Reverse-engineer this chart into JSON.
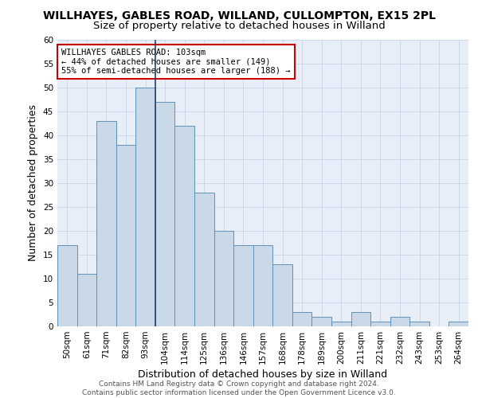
{
  "title1": "WILLHAYES, GABLES ROAD, WILLAND, CULLOMPTON, EX15 2PL",
  "title2": "Size of property relative to detached houses in Willand",
  "xlabel": "Distribution of detached houses by size in Willand",
  "ylabel": "Number of detached properties",
  "categories": [
    "50sqm",
    "61sqm",
    "71sqm",
    "82sqm",
    "93sqm",
    "104sqm",
    "114sqm",
    "125sqm",
    "136sqm",
    "146sqm",
    "157sqm",
    "168sqm",
    "178sqm",
    "189sqm",
    "200sqm",
    "211sqm",
    "221sqm",
    "232sqm",
    "243sqm",
    "253sqm",
    "264sqm"
  ],
  "values": [
    17,
    11,
    43,
    38,
    50,
    47,
    42,
    28,
    20,
    17,
    17,
    13,
    3,
    2,
    1,
    3,
    1,
    2,
    1,
    0,
    1
  ],
  "bar_color": "#c9d9e8",
  "bar_edge_color": "#6090b8",
  "highlight_bar_index": 5,
  "highlight_line_color": "#2c3e6b",
  "annotation_text": "WILLHAYES GABLES ROAD: 103sqm\n← 44% of detached houses are smaller (149)\n55% of semi-detached houses are larger (188) →",
  "annotation_box_color": "#ffffff",
  "annotation_box_edge_color": "#cc0000",
  "ylim": [
    0,
    60
  ],
  "yticks": [
    0,
    5,
    10,
    15,
    20,
    25,
    30,
    35,
    40,
    45,
    50,
    55,
    60
  ],
  "grid_color": "#c8d4e8",
  "background_color": "#e8eef8",
  "footer_text": "Contains HM Land Registry data © Crown copyright and database right 2024.\nContains public sector information licensed under the Open Government Licence v3.0.",
  "title1_fontsize": 10,
  "title2_fontsize": 9.5,
  "xlabel_fontsize": 9,
  "ylabel_fontsize": 9,
  "tick_fontsize": 7.5,
  "annotation_fontsize": 7.5,
  "footer_fontsize": 6.5
}
